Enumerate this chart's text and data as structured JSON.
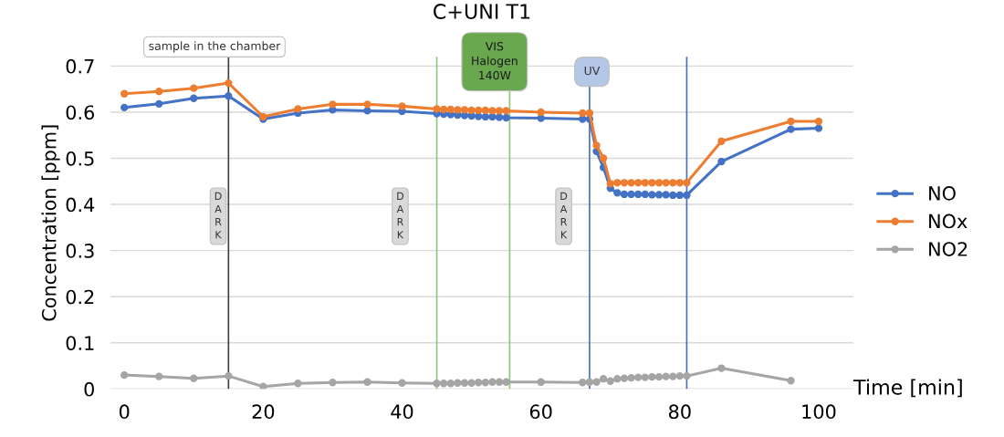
{
  "chart_data": {
    "type": "line",
    "title": "C+UNI T1",
    "xlabel": "Time [min]",
    "ylabel": "Concentration [ppm]",
    "xlim": [
      -2,
      105
    ],
    "xticks": [
      0,
      20,
      40,
      60,
      80,
      100
    ],
    "ylim": [
      0,
      0.72
    ],
    "yticks": [
      0,
      0.1,
      0.2,
      0.3,
      0.4,
      0.5,
      0.6,
      0.7
    ],
    "grid": "y",
    "legend": "right",
    "marker": "circle",
    "line_style": "solid",
    "series": [
      {
        "name": "NO",
        "color": "#4472c4",
        "x": [
          0,
          5,
          10,
          15,
          20,
          25,
          30,
          35,
          40,
          45,
          46,
          47,
          48,
          49,
          50,
          51,
          52,
          53,
          54,
          55,
          60,
          66,
          67,
          68,
          69,
          70,
          71,
          72,
          73,
          74,
          75,
          76,
          77,
          78,
          79,
          80,
          81,
          86,
          96,
          100
        ],
        "values": [
          0.61,
          0.618,
          0.63,
          0.635,
          0.585,
          0.598,
          0.605,
          0.603,
          0.602,
          0.597,
          0.596,
          0.595,
          0.594,
          0.593,
          0.592,
          0.591,
          0.59,
          0.59,
          0.589,
          0.588,
          0.587,
          0.585,
          0.585,
          0.515,
          0.48,
          0.435,
          0.425,
          0.422,
          0.422,
          0.422,
          0.422,
          0.421,
          0.421,
          0.421,
          0.42,
          0.42,
          0.42,
          0.493,
          0.563,
          0.565
        ]
      },
      {
        "name": "NOx",
        "color": "#ed7d31",
        "x": [
          0,
          5,
          10,
          15,
          20,
          25,
          30,
          35,
          40,
          45,
          46,
          47,
          48,
          49,
          50,
          51,
          52,
          53,
          54,
          55,
          60,
          66,
          67,
          68,
          69,
          70,
          71,
          72,
          73,
          74,
          75,
          76,
          77,
          78,
          79,
          80,
          81,
          86,
          96,
          100
        ],
        "values": [
          0.64,
          0.645,
          0.652,
          0.663,
          0.59,
          0.607,
          0.617,
          0.617,
          0.613,
          0.607,
          0.606,
          0.606,
          0.605,
          0.605,
          0.604,
          0.604,
          0.604,
          0.603,
          0.603,
          0.603,
          0.6,
          0.598,
          0.598,
          0.528,
          0.5,
          0.445,
          0.447,
          0.447,
          0.447,
          0.447,
          0.447,
          0.447,
          0.447,
          0.447,
          0.447,
          0.447,
          0.447,
          0.537,
          0.58,
          0.58
        ]
      },
      {
        "name": "NO2",
        "color": "#a5a5a5",
        "x": [
          0,
          5,
          10,
          15,
          20,
          25,
          30,
          35,
          40,
          45,
          46,
          47,
          48,
          49,
          50,
          51,
          52,
          53,
          54,
          55,
          60,
          66,
          67,
          68,
          69,
          70,
          71,
          72,
          73,
          74,
          75,
          76,
          77,
          78,
          79,
          80,
          81,
          86,
          96
        ],
        "values": [
          0.03,
          0.027,
          0.023,
          0.028,
          0.005,
          0.012,
          0.014,
          0.015,
          0.013,
          0.012,
          0.012,
          0.012,
          0.013,
          0.013,
          0.013,
          0.014,
          0.014,
          0.015,
          0.015,
          0.015,
          0.015,
          0.014,
          0.015,
          0.015,
          0.022,
          0.017,
          0.022,
          0.023,
          0.024,
          0.025,
          0.025,
          0.026,
          0.026,
          0.027,
          0.027,
          0.028,
          0.028,
          0.045,
          0.018
        ]
      }
    ],
    "ref_lines": [
      {
        "axis": "x",
        "value": 15,
        "color": "#404040"
      },
      {
        "axis": "x",
        "value": 45,
        "color": "#92c47d"
      },
      {
        "axis": "x",
        "value": 55.5,
        "color": "#92c47d"
      },
      {
        "axis": "x",
        "value": 67,
        "color": "#4a6fc4"
      },
      {
        "axis": "x",
        "value": 81,
        "color": "#4a6fc4"
      }
    ],
    "annotations": [
      "sample in the chamber",
      "VIS\nHalogen\n140W",
      "UV",
      "D\nA\nR\nK",
      "D\nA\nR\nK",
      "D\nA\nR\nK"
    ]
  }
}
